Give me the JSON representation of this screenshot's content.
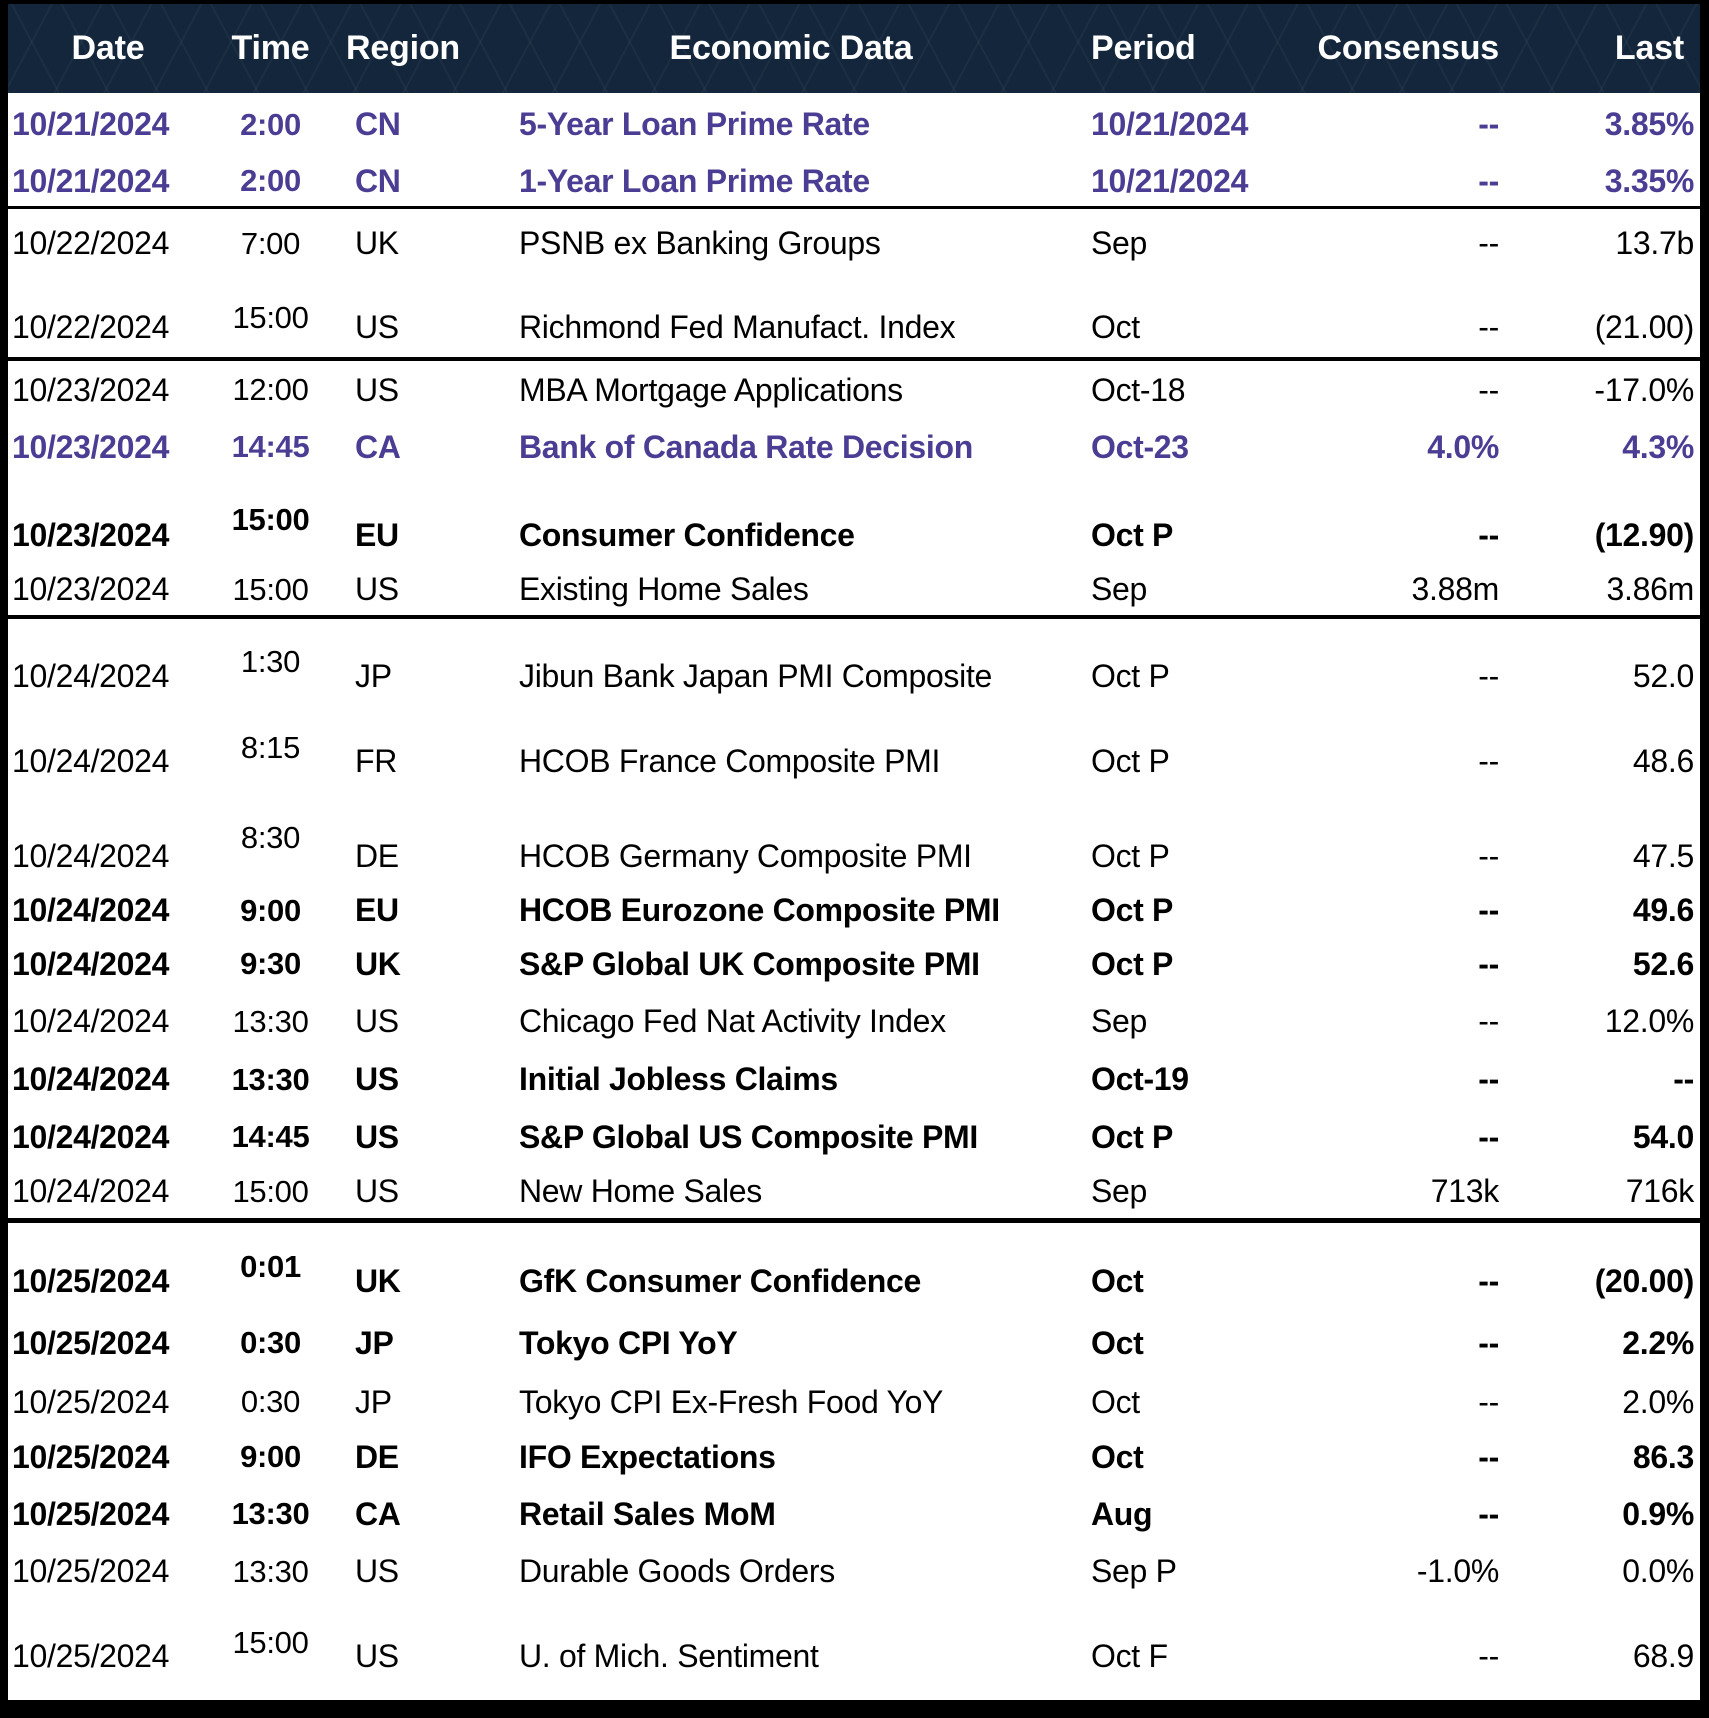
{
  "colors": {
    "header_background": "#13263B",
    "header_text": "#FFFFFF",
    "highlight_purple": "#4A3D93",
    "body_text": "#000000",
    "row_background": "#FFFFFF",
    "separator": "#000000"
  },
  "table": {
    "columns": [
      "Date",
      "Time",
      "Region",
      "Economic Data",
      "Period",
      "Consensus",
      "Last"
    ],
    "rows": [
      {
        "date": "10/21/2024",
        "time": "2:00",
        "region": "CN",
        "event": "5-Year Loan Prime Rate",
        "period": "10/21/2024",
        "consensus": "--",
        "last": "3.85%",
        "emphasis": "purple"
      },
      {
        "date": "10/21/2024",
        "time": "2:00",
        "region": "CN",
        "event": "1-Year Loan Prime Rate",
        "period": "10/21/2024",
        "consensus": "--",
        "last": "3.35%",
        "emphasis": "purple"
      },
      {
        "date": "10/22/2024",
        "time": "7:00",
        "region": "UK",
        "event": "PSNB ex Banking Groups",
        "period": "Sep",
        "consensus": "--",
        "last": "13.7b",
        "emphasis": "none"
      },
      {
        "date": "10/22/2024",
        "time": "15:00",
        "region": "US",
        "event": "Richmond Fed Manufact. Index",
        "period": "Oct",
        "consensus": "--",
        "last": "(21.00)",
        "emphasis": "none"
      },
      {
        "date": "10/23/2024",
        "time": "12:00",
        "region": "US",
        "event": "MBA Mortgage Applications",
        "period": "Oct-18",
        "consensus": "--",
        "last": "-17.0%",
        "emphasis": "none"
      },
      {
        "date": "10/23/2024",
        "time": "14:45",
        "region": "CA",
        "event": "Bank of Canada Rate Decision",
        "period": "Oct-23",
        "consensus": "4.0%",
        "last": "4.3%",
        "emphasis": "purple"
      },
      {
        "date": "10/23/2024",
        "time": "15:00",
        "region": "EU",
        "event": "Consumer Confidence",
        "period": "Oct P",
        "consensus": "--",
        "last": "(12.90)",
        "emphasis": "bold"
      },
      {
        "date": "10/23/2024",
        "time": "15:00",
        "region": "US",
        "event": "Existing Home Sales",
        "period": "Sep",
        "consensus": "3.88m",
        "last": "3.86m",
        "emphasis": "none"
      },
      {
        "date": "10/24/2024",
        "time": "1:30",
        "region": "JP",
        "event": "Jibun Bank Japan PMI Composite",
        "period": "Oct P",
        "consensus": "--",
        "last": "52.0",
        "emphasis": "none"
      },
      {
        "date": "10/24/2024",
        "time": "8:15",
        "region": "FR",
        "event": "HCOB France Composite PMI",
        "period": "Oct P",
        "consensus": "--",
        "last": "48.6",
        "emphasis": "none"
      },
      {
        "date": "10/24/2024",
        "time": "8:30",
        "region": "DE",
        "event": "HCOB Germany Composite PMI",
        "period": "Oct P",
        "consensus": "--",
        "last": "47.5",
        "emphasis": "none"
      },
      {
        "date": "10/24/2024",
        "time": "9:00",
        "region": "EU",
        "event": "HCOB Eurozone Composite PMI",
        "period": "Oct P",
        "consensus": "--",
        "last": "49.6",
        "emphasis": "bold"
      },
      {
        "date": "10/24/2024",
        "time": "9:30",
        "region": "UK",
        "event": "S&P Global UK Composite PMI",
        "period": "Oct P",
        "consensus": "--",
        "last": "52.6",
        "emphasis": "bold"
      },
      {
        "date": "10/24/2024",
        "time": "13:30",
        "region": "US",
        "event": "Chicago Fed Nat Activity Index",
        "period": "Sep",
        "consensus": "--",
        "last": "12.0%",
        "emphasis": "none"
      },
      {
        "date": "10/24/2024",
        "time": "13:30",
        "region": "US",
        "event": "Initial Jobless Claims",
        "period": "Oct-19",
        "consensus": "--",
        "last": "--",
        "emphasis": "bold"
      },
      {
        "date": "10/24/2024",
        "time": "14:45",
        "region": "US",
        "event": "S&P Global US Composite PMI",
        "period": "Oct P",
        "consensus": "--",
        "last": "54.0",
        "emphasis": "bold"
      },
      {
        "date": "10/24/2024",
        "time": "15:00",
        "region": "US",
        "event": "New Home Sales",
        "period": "Sep",
        "consensus": "713k",
        "last": "716k",
        "emphasis": "none"
      },
      {
        "date": "10/25/2024",
        "time": "0:01",
        "region": "UK",
        "event": "GfK Consumer Confidence",
        "period": "Oct",
        "consensus": "--",
        "last": "(20.00)",
        "emphasis": "bold"
      },
      {
        "date": "10/25/2024",
        "time": "0:30",
        "region": "JP",
        "event": "Tokyo CPI YoY",
        "period": "Oct",
        "consensus": "--",
        "last": "2.2%",
        "emphasis": "bold"
      },
      {
        "date": "10/25/2024",
        "time": "0:30",
        "region": "JP",
        "event": "Tokyo CPI Ex-Fresh Food YoY",
        "period": "Oct",
        "consensus": "--",
        "last": "2.0%",
        "emphasis": "none"
      },
      {
        "date": "10/25/2024",
        "time": "9:00",
        "region": "DE",
        "event": "IFO Expectations",
        "period": "Oct",
        "consensus": "--",
        "last": "86.3",
        "emphasis": "bold"
      },
      {
        "date": "10/25/2024",
        "time": "13:30",
        "region": "CA",
        "event": "Retail Sales MoM",
        "period": "Aug",
        "consensus": "--",
        "last": "0.9%",
        "emphasis": "bold"
      },
      {
        "date": "10/25/2024",
        "time": "13:30",
        "region": "US",
        "event": "Durable Goods Orders",
        "period": "Sep P",
        "consensus": "-1.0%",
        "last": "0.0%",
        "emphasis": "none"
      },
      {
        "date": "10/25/2024",
        "time": "15:00",
        "region": "US",
        "event": "U. of Mich. Sentiment",
        "period": "Oct F",
        "consensus": "--",
        "last": "68.9",
        "emphasis": "none"
      }
    ]
  }
}
